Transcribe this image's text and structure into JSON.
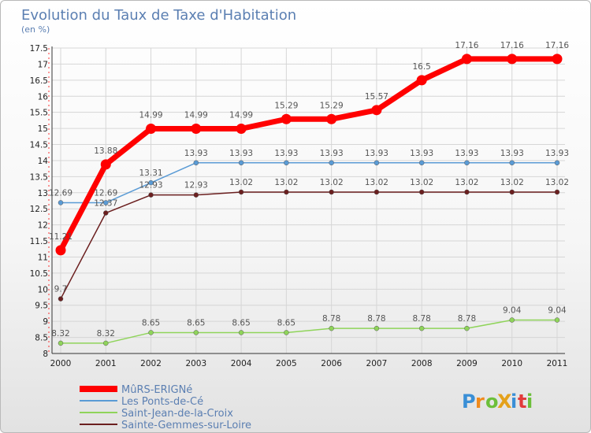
{
  "chart_data": {
    "type": "line",
    "title": "Evolution du Taux de Taxe d'Habitation",
    "subtitle": "(en %)",
    "x": [
      "2000",
      "2001",
      "2002",
      "2003",
      "2004",
      "2005",
      "2006",
      "2007",
      "2008",
      "2009",
      "2010",
      "2011"
    ],
    "ylim": [
      8,
      17.5
    ],
    "yticks": [
      "8",
      "8.5",
      "9",
      "9.5",
      "10",
      "10.5",
      "11",
      "11.5",
      "12",
      "12.5",
      "13",
      "13.5",
      "14",
      "14.5",
      "15",
      "15.5",
      "16",
      "16.5",
      "17",
      "17.5"
    ],
    "grid": true,
    "legend_position": "bottom-left",
    "series": [
      {
        "name": "MûRS-ERIGNé",
        "color": "#ff0000",
        "values": [
          11.21,
          13.88,
          14.99,
          14.99,
          14.99,
          15.29,
          15.29,
          15.57,
          16.5,
          17.16,
          17.16,
          17.16
        ]
      },
      {
        "name": "Les Ponts-de-Cé",
        "color": "#5a9bd5",
        "values": [
          12.69,
          12.69,
          13.31,
          13.93,
          13.93,
          13.93,
          13.93,
          13.93,
          13.93,
          13.93,
          13.93,
          13.93
        ]
      },
      {
        "name": "Saint-Jean-de-la-Croix",
        "color": "#8fd45a",
        "values": [
          8.32,
          8.32,
          8.65,
          8.65,
          8.65,
          8.65,
          8.78,
          8.78,
          8.78,
          8.78,
          9.04,
          9.04
        ]
      },
      {
        "name": "Sainte-Gemmes-sur-Loire",
        "color": "#6b1f1f",
        "values": [
          9.7,
          12.37,
          12.93,
          12.93,
          13.02,
          13.02,
          13.02,
          13.02,
          13.02,
          13.02,
          13.02,
          13.02
        ]
      }
    ],
    "labels": [
      [
        "11.21",
        "13.88",
        "14.99",
        "14.99",
        "14.99",
        "15.29",
        "15.29",
        "15.57",
        "16.5",
        "17.16",
        "17.16",
        "17.16"
      ],
      [
        "12.69",
        "12.69",
        "13.31",
        "13.93",
        "13.93",
        "13.93",
        "13.93",
        "13.93",
        "13.93",
        "13.93",
        "13.93",
        "13.93"
      ],
      [
        "8.32",
        "8.32",
        "8.65",
        "8.65",
        "8.65",
        "8.65",
        "8.78",
        "8.78",
        "8.78",
        "8.78",
        "9.04",
        "9.04"
      ],
      [
        "9.7",
        "12.37",
        "12.93",
        "12.93",
        "13.02",
        "13.02",
        "13.02",
        "13.02",
        "13.02",
        "13.02",
        "13.02",
        "13.02"
      ]
    ]
  },
  "logo": {
    "text": "ProXiti"
  }
}
